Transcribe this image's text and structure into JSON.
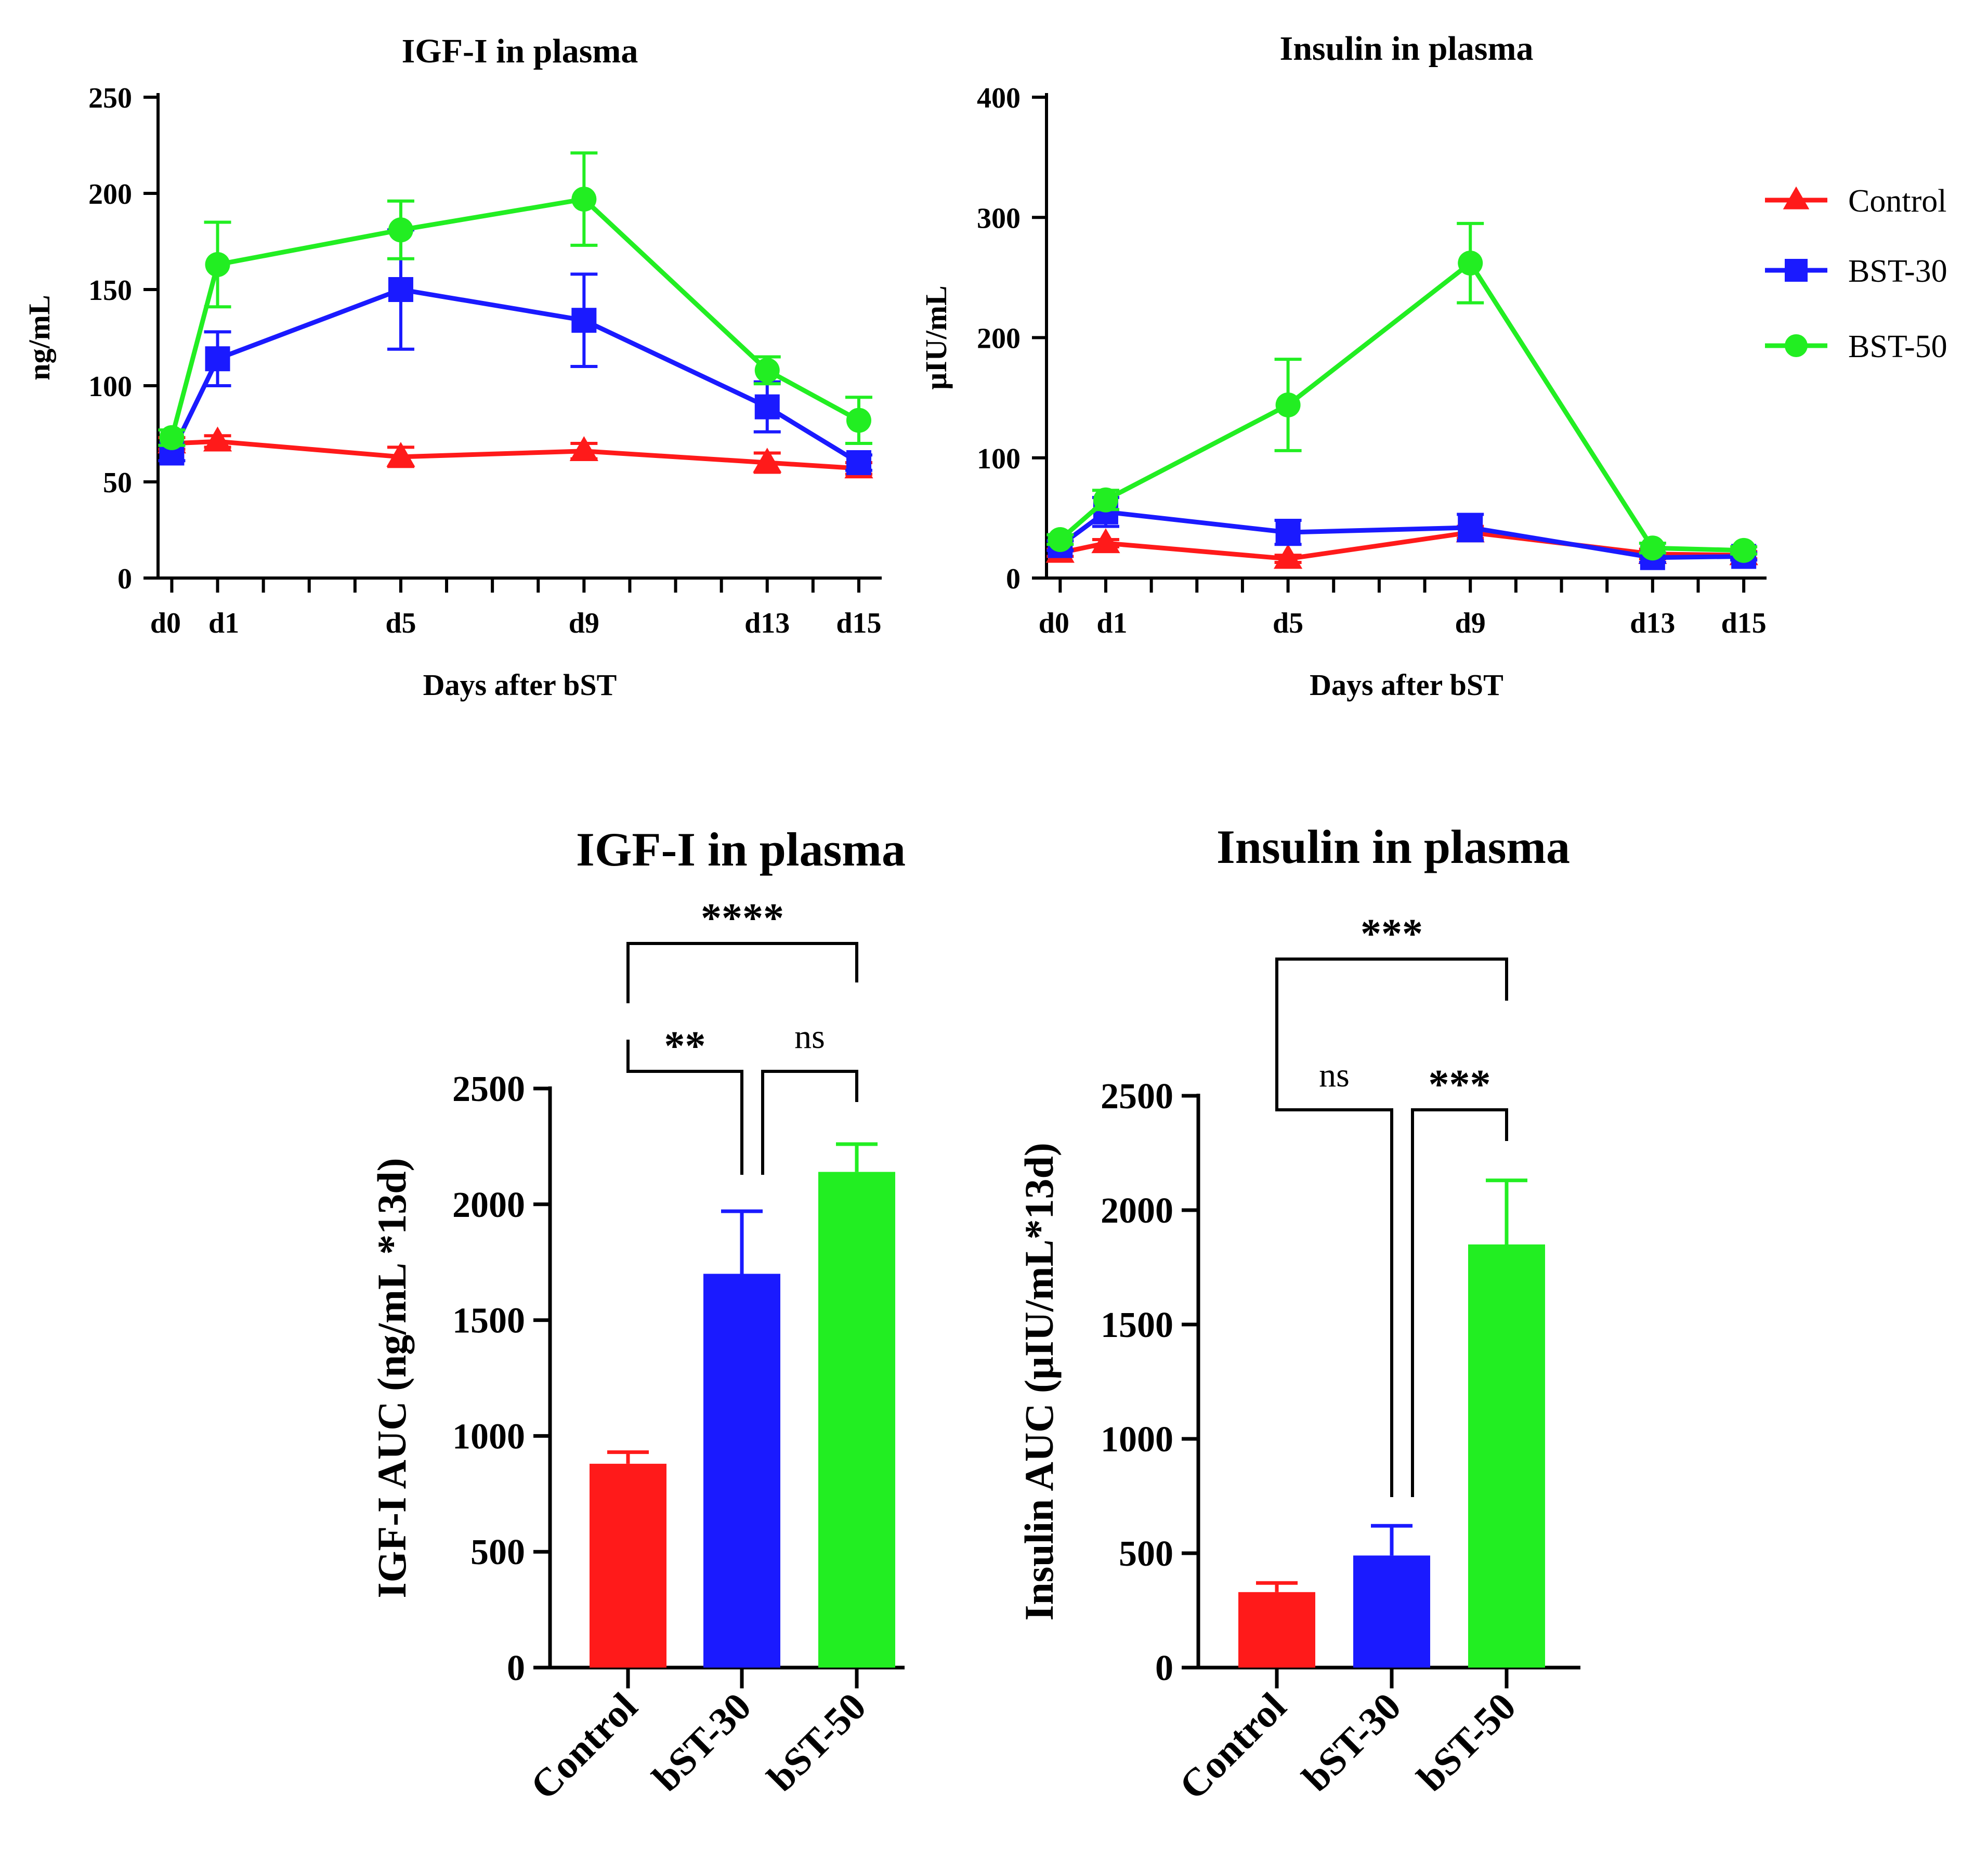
{
  "colors": {
    "control": "#ff1a1a",
    "bst30": "#1a1aff",
    "bst50": "#22ee22",
    "axis": "#000000"
  },
  "legend": {
    "placement": "right of top-right chart",
    "items": [
      {
        "label": "Control",
        "marker": "triangle",
        "color": "#ff1a1a"
      },
      {
        "label": "BST-30",
        "marker": "square",
        "color": "#1a1aff"
      },
      {
        "label": "BST-50",
        "marker": "circle",
        "color": "#22ee22"
      }
    ]
  },
  "chart_data": [
    {
      "id": "igf_line",
      "type": "line",
      "title": "IGF-I in plasma",
      "xlabel": "Days after bST",
      "ylabel": "ng/mL",
      "xlim": [
        -0.3,
        15.5
      ],
      "ylim": [
        0,
        250
      ],
      "x": [
        0,
        1,
        5,
        9,
        13,
        15
      ],
      "x_ticks": [
        0,
        1,
        2,
        3,
        4,
        5,
        6,
        7,
        8,
        9,
        10,
        11,
        12,
        13,
        14,
        15
      ],
      "x_tick_labels": [
        "d0",
        "d1",
        "",
        "",
        "",
        "d5",
        "",
        "",
        "",
        "d9",
        "",
        "",
        "",
        "d13",
        "",
        "d15"
      ],
      "y_ticks": [
        0,
        50,
        100,
        150,
        200,
        250
      ],
      "series": [
        {
          "name": "Control",
          "marker": "triangle",
          "color": "#ff1a1a",
          "values": [
            70,
            71,
            63,
            66,
            60,
            57
          ],
          "err": [
            3,
            3,
            5,
            4,
            5,
            3
          ]
        },
        {
          "name": "BST-30",
          "marker": "square",
          "color": "#1a1aff",
          "values": [
            65,
            114,
            150,
            134,
            89,
            60
          ],
          "err": [
            4,
            14,
            31,
            24,
            13,
            4
          ]
        },
        {
          "name": "BST-50",
          "marker": "circle",
          "color": "#22ee22",
          "values": [
            73,
            163,
            181,
            197,
            108,
            82
          ],
          "err": [
            4,
            22,
            15,
            24,
            7,
            12
          ]
        }
      ]
    },
    {
      "id": "ins_line",
      "type": "line",
      "title": "Insulin in plasma",
      "xlabel": "Days after bST",
      "ylabel": "μIU/mL",
      "xlim": [
        -0.3,
        15.5
      ],
      "ylim": [
        0,
        400
      ],
      "x": [
        0,
        1,
        5,
        9,
        13,
        15
      ],
      "x_ticks": [
        0,
        1,
        2,
        3,
        4,
        5,
        6,
        7,
        8,
        9,
        10,
        11,
        12,
        13,
        14,
        15
      ],
      "x_tick_labels": [
        "d0",
        "d1",
        "",
        "",
        "",
        "d5",
        "",
        "",
        "",
        "d9",
        "",
        "",
        "",
        "d13",
        "",
        "d15"
      ],
      "y_ticks": [
        0,
        100,
        200,
        300,
        400
      ],
      "series": [
        {
          "name": "Control",
          "marker": "triangle",
          "color": "#ff1a1a",
          "values": [
            21,
            29,
            16,
            38,
            20,
            19
          ],
          "err": [
            3,
            3,
            3,
            5,
            4,
            3
          ]
        },
        {
          "name": "BST-30",
          "marker": "square",
          "color": "#1a1aff",
          "values": [
            27,
            55,
            38,
            42,
            17,
            18
          ],
          "err": [
            4,
            12,
            10,
            11,
            4,
            3
          ]
        },
        {
          "name": "BST-50",
          "marker": "circle",
          "color": "#22ee22",
          "values": [
            32,
            65,
            144,
            262,
            25,
            23
          ],
          "err": [
            4,
            8,
            38,
            33,
            4,
            3
          ]
        }
      ]
    },
    {
      "id": "igf_bar",
      "type": "bar",
      "title": "IGF-I in plasma",
      "ylabel": "IGF-I AUC (ng/mL *13d)",
      "ylim": [
        0,
        2500
      ],
      "y_ticks": [
        0,
        500,
        1000,
        1500,
        2000,
        2500
      ],
      "categories": [
        "Control",
        "bST-30",
        "bST-50"
      ],
      "values": [
        880,
        1700,
        2140
      ],
      "err": [
        50,
        270,
        120
      ],
      "colors": [
        "#ff1a1a",
        "#1a1aff",
        "#22ee22"
      ],
      "comparisons": [
        {
          "a": 0,
          "b": 2,
          "label": "****",
          "level": 2
        },
        {
          "a": 0,
          "b": 1,
          "label": "**",
          "level": 1
        },
        {
          "a": 1,
          "b": 2,
          "label": "ns",
          "level": 1
        }
      ]
    },
    {
      "id": "ins_bar",
      "type": "bar",
      "title": "Insulin in plasma",
      "ylabel": "Insulin AUC (μIU/mL*13d)",
      "ylim": [
        0,
        2500
      ],
      "y_ticks": [
        0,
        500,
        1000,
        1500,
        2000,
        2500
      ],
      "categories": [
        "Control",
        "bST-30",
        "bST-50"
      ],
      "values": [
        330,
        490,
        1850
      ],
      "err": [
        40,
        130,
        280
      ],
      "colors": [
        "#ff1a1a",
        "#1a1aff",
        "#22ee22"
      ],
      "comparisons": [
        {
          "a": 0,
          "b": 2,
          "label": "***",
          "level": 2
        },
        {
          "a": 0,
          "b": 1,
          "label": "ns",
          "level": 1
        },
        {
          "a": 1,
          "b": 2,
          "label": "***",
          "level": 1
        }
      ]
    }
  ]
}
